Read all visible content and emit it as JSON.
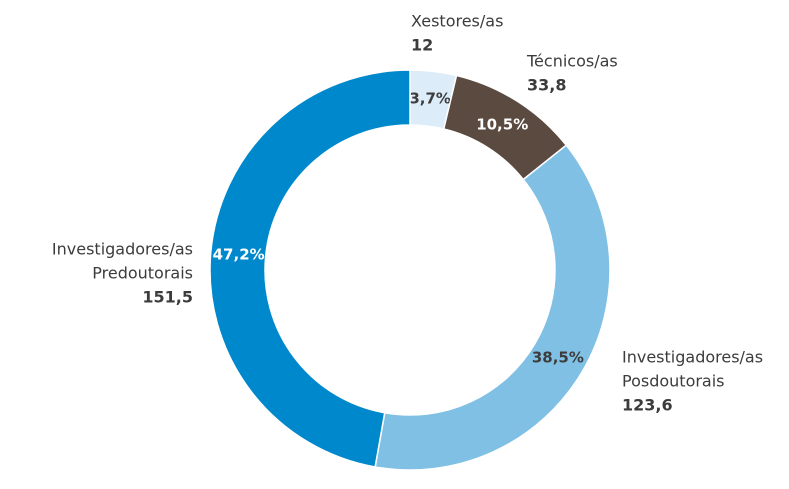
{
  "chart_data": {
    "type": "donut",
    "categories": [
      [
        "Xestores/as"
      ],
      [
        "Técnicos/as"
      ],
      [
        "Investigadores/as",
        "Posdoutorais"
      ],
      [
        "Investigadores/as",
        "Predoutorais"
      ]
    ],
    "values": [
      12,
      33.8,
      123.6,
      151.5
    ],
    "value_labels": [
      "12",
      "33,8",
      "123,6",
      "151,5"
    ],
    "percents": [
      3.7,
      10.5,
      38.5,
      47.2
    ],
    "percent_labels": [
      "3,7%",
      "10,5%",
      "38,5%",
      "47,2%"
    ],
    "colors": [
      "#dcecf8",
      "#5a4a3f",
      "#80c0e5",
      "#0088cc"
    ]
  }
}
